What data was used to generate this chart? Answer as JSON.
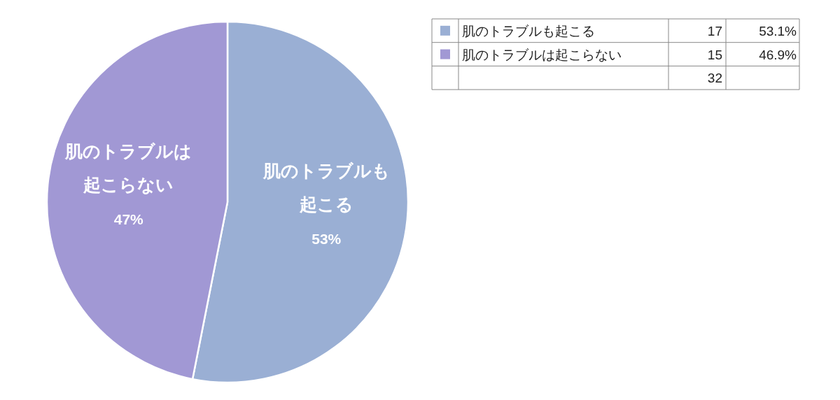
{
  "chart_data": {
    "type": "pie",
    "categories": [
      "肌のトラブルも起こる",
      "肌のトラブルは起こらない"
    ],
    "values": [
      53.1,
      46.9
    ],
    "colors": [
      "#9aafd4",
      "#a198d4"
    ],
    "value_labels": [
      "53%",
      "47%"
    ],
    "totals": [
      "32"
    ],
    "annotations": [
      "17",
      "53.1%",
      "15",
      "46.9%"
    ],
    "legend": "top right"
  }
}
